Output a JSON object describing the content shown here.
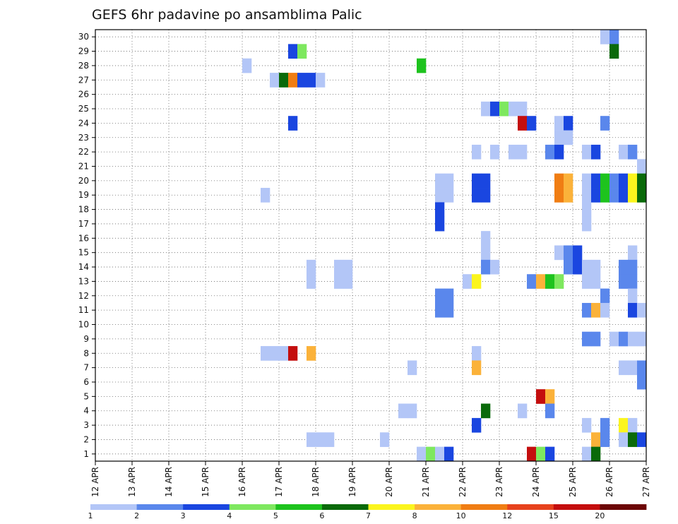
{
  "chart_data": {
    "type": "heatmap",
    "title": "GEFS 6hr padavine po ansamblima Palic",
    "xlabel": "",
    "ylabel": "",
    "x_tick_labels": [
      "12 APR",
      "13 APR",
      "14 APR",
      "15 APR",
      "16 APR",
      "17 APR",
      "18 APR",
      "19 APR",
      "20 APR",
      "21 APR",
      "22 APR",
      "23 APR",
      "24 APR",
      "25 APR",
      "26 APR",
      "27 APR"
    ],
    "xlim": [
      12,
      27
    ],
    "y_tick_labels": [
      1,
      2,
      3,
      4,
      5,
      6,
      7,
      8,
      9,
      10,
      11,
      12,
      13,
      14,
      15,
      16,
      17,
      18,
      19,
      20,
      21,
      22,
      23,
      24,
      25,
      26,
      27,
      28,
      29,
      30
    ],
    "ylim": [
      0.5,
      30.5
    ],
    "grid": true,
    "colorbar": {
      "boundaries": [
        "1",
        "2",
        "3",
        "4",
        "5",
        "6",
        "7",
        "8",
        "10",
        "12",
        "15",
        "20"
      ],
      "colors": [
        "#b3c6f7",
        "#5a87ec",
        "#1a46e0",
        "#7ee85f",
        "#1ec31e",
        "#0a6a0a",
        "#fbf51e",
        "#fbb23a",
        "#f07d13",
        "#e7421d",
        "#c40e0e",
        "#6c0606"
      ]
    },
    "cells": [
      {
        "m": 30,
        "d": "25.75",
        "v": 1
      },
      {
        "m": 30,
        "d": "26.0",
        "v": 2
      },
      {
        "m": 29,
        "d": "17.25",
        "v": 3
      },
      {
        "m": 29,
        "d": "17.5",
        "v": 4
      },
      {
        "m": 29,
        "d": "26.0",
        "v": 6
      },
      {
        "m": 28,
        "d": "16.0",
        "v": 1
      },
      {
        "m": 28,
        "d": "20.75",
        "v": 5
      },
      {
        "m": 27,
        "d": "16.75",
        "v": 1
      },
      {
        "m": 27,
        "d": "17.0",
        "v": 6
      },
      {
        "m": 27,
        "d": "17.25",
        "v": 10
      },
      {
        "m": 27,
        "d": "17.5",
        "v": 3
      },
      {
        "m": 27,
        "d": "17.75",
        "v": 3
      },
      {
        "m": 27,
        "d": "18.0",
        "v": 1
      },
      {
        "m": 25,
        "d": "22.5",
        "v": 1
      },
      {
        "m": 25,
        "d": "22.75",
        "v": 3
      },
      {
        "m": 25,
        "d": "23.0",
        "v": 4
      },
      {
        "m": 25,
        "d": "23.25",
        "v": 1
      },
      {
        "m": 25,
        "d": "23.5",
        "v": 1
      },
      {
        "m": 24,
        "d": "17.25",
        "v": 3
      },
      {
        "m": 24,
        "d": "23.5",
        "v": 15
      },
      {
        "m": 24,
        "d": "23.75",
        "v": 3
      },
      {
        "m": 24,
        "d": "24.5",
        "v": 1
      },
      {
        "m": 24,
        "d": "24.75",
        "v": 3
      },
      {
        "m": 24,
        "d": "25.75",
        "v": 2
      },
      {
        "m": 23,
        "d": "24.5",
        "v": 1
      },
      {
        "m": 23,
        "d": "24.75",
        "v": 1
      },
      {
        "m": 22,
        "d": "22.25",
        "v": 1
      },
      {
        "m": 22,
        "d": "22.75",
        "v": 1
      },
      {
        "m": 22,
        "d": "23.25",
        "v": 1
      },
      {
        "m": 22,
        "d": "23.5",
        "v": 1
      },
      {
        "m": 22,
        "d": "24.25",
        "v": 2
      },
      {
        "m": 22,
        "d": "24.5",
        "v": 3
      },
      {
        "m": 22,
        "d": "25.25",
        "v": 1
      },
      {
        "m": 22,
        "d": "25.5",
        "v": 3
      },
      {
        "m": 22,
        "d": "26.25",
        "v": 1
      },
      {
        "m": 22,
        "d": "26.5",
        "v": 2
      },
      {
        "m": 21,
        "d": "26.75",
        "v": 1
      },
      {
        "m": 20,
        "d": "21.25",
        "v": 1
      },
      {
        "m": 20,
        "d": "21.5",
        "v": 1
      },
      {
        "m": 20,
        "d": "22.25",
        "v": 3
      },
      {
        "m": 20,
        "d": "22.5",
        "v": 3
      },
      {
        "m": 20,
        "d": "24.5",
        "v": 10
      },
      {
        "m": 20,
        "d": "24.75",
        "v": 8
      },
      {
        "m": 20,
        "d": "25.25",
        "v": 1
      },
      {
        "m": 20,
        "d": "25.5",
        "v": 3
      },
      {
        "m": 20,
        "d": "25.75",
        "v": 5
      },
      {
        "m": 20,
        "d": "26.0",
        "v": 2
      },
      {
        "m": 20,
        "d": "26.25",
        "v": 3
      },
      {
        "m": 20,
        "d": "26.5",
        "v": 7
      },
      {
        "m": 20,
        "d": "26.75",
        "v": 6
      },
      {
        "m": 19,
        "d": "16.5",
        "v": 1
      },
      {
        "m": 19,
        "d": "21.25",
        "v": 1
      },
      {
        "m": 19,
        "d": "21.5",
        "v": 1
      },
      {
        "m": 19,
        "d": "22.25",
        "v": 3
      },
      {
        "m": 19,
        "d": "22.5",
        "v": 3
      },
      {
        "m": 19,
        "d": "24.5",
        "v": 10
      },
      {
        "m": 19,
        "d": "24.75",
        "v": 8
      },
      {
        "m": 19,
        "d": "25.25",
        "v": 1
      },
      {
        "m": 19,
        "d": "25.5",
        "v": 3
      },
      {
        "m": 19,
        "d": "25.75",
        "v": 5
      },
      {
        "m": 19,
        "d": "26.0",
        "v": 2
      },
      {
        "m": 19,
        "d": "26.25",
        "v": 3
      },
      {
        "m": 19,
        "d": "26.5",
        "v": 7
      },
      {
        "m": 19,
        "d": "26.75",
        "v": 6
      },
      {
        "m": 18,
        "d": "21.25",
        "v": 3
      },
      {
        "m": 18,
        "d": "25.25",
        "v": 1
      },
      {
        "m": 17,
        "d": "21.25",
        "v": 3
      },
      {
        "m": 17,
        "d": "25.25",
        "v": 1
      },
      {
        "m": 16,
        "d": "22.5",
        "v": 1
      },
      {
        "m": 15,
        "d": "22.5",
        "v": 1
      },
      {
        "m": 15,
        "d": "24.5",
        "v": 1
      },
      {
        "m": 15,
        "d": "24.75",
        "v": 2
      },
      {
        "m": 15,
        "d": "25.0",
        "v": 3
      },
      {
        "m": 15,
        "d": "26.5",
        "v": 1
      },
      {
        "m": 14,
        "d": "17.75",
        "v": 1
      },
      {
        "m": 14,
        "d": "18.5",
        "v": 1
      },
      {
        "m": 14,
        "d": "18.75",
        "v": 1
      },
      {
        "m": 14,
        "d": "22.5",
        "v": 2
      },
      {
        "m": 14,
        "d": "22.75",
        "v": 1
      },
      {
        "m": 14,
        "d": "24.75",
        "v": 2
      },
      {
        "m": 14,
        "d": "25.0",
        "v": 3
      },
      {
        "m": 14,
        "d": "25.25",
        "v": 1
      },
      {
        "m": 14,
        "d": "25.5",
        "v": 1
      },
      {
        "m": 14,
        "d": "26.25",
        "v": 2
      },
      {
        "m": 14,
        "d": "26.5",
        "v": 2
      },
      {
        "m": 13,
        "d": "17.75",
        "v": 1
      },
      {
        "m": 13,
        "d": "18.5",
        "v": 1
      },
      {
        "m": 13,
        "d": "18.75",
        "v": 1
      },
      {
        "m": 13,
        "d": "22.0",
        "v": 1
      },
      {
        "m": 13,
        "d": "22.25",
        "v": 7
      },
      {
        "m": 13,
        "d": "23.75",
        "v": 2
      },
      {
        "m": 13,
        "d": "24.0",
        "v": 8
      },
      {
        "m": 13,
        "d": "24.25",
        "v": 5
      },
      {
        "m": 13,
        "d": "24.5",
        "v": 4
      },
      {
        "m": 13,
        "d": "25.25",
        "v": 1
      },
      {
        "m": 13,
        "d": "25.5",
        "v": 1
      },
      {
        "m": 13,
        "d": "26.25",
        "v": 2
      },
      {
        "m": 13,
        "d": "26.5",
        "v": 2
      },
      {
        "m": 12,
        "d": "21.25",
        "v": 2
      },
      {
        "m": 12,
        "d": "21.5",
        "v": 2
      },
      {
        "m": 12,
        "d": "25.75",
        "v": 2
      },
      {
        "m": 12,
        "d": "26.5",
        "v": 1
      },
      {
        "m": 11,
        "d": "21.25",
        "v": 2
      },
      {
        "m": 11,
        "d": "21.5",
        "v": 2
      },
      {
        "m": 11,
        "d": "25.25",
        "v": 2
      },
      {
        "m": 11,
        "d": "25.5",
        "v": 8
      },
      {
        "m": 11,
        "d": "25.75",
        "v": 1
      },
      {
        "m": 11,
        "d": "26.5",
        "v": 3
      },
      {
        "m": 11,
        "d": "26.75",
        "v": 1
      },
      {
        "m": 9,
        "d": "25.25",
        "v": 2
      },
      {
        "m": 9,
        "d": "25.5",
        "v": 2
      },
      {
        "m": 9,
        "d": "26.0",
        "v": 1
      },
      {
        "m": 9,
        "d": "26.25",
        "v": 2
      },
      {
        "m": 9,
        "d": "26.5",
        "v": 1
      },
      {
        "m": 9,
        "d": "26.75",
        "v": 1
      },
      {
        "m": 8,
        "d": "16.5",
        "v": 1
      },
      {
        "m": 8,
        "d": "16.75",
        "v": 1
      },
      {
        "m": 8,
        "d": "17.0",
        "v": 1
      },
      {
        "m": 8,
        "d": "17.25",
        "v": 15
      },
      {
        "m": 8,
        "d": "17.75",
        "v": 8
      },
      {
        "m": 8,
        "d": "22.25",
        "v": 1
      },
      {
        "m": 7,
        "d": "20.5",
        "v": 1
      },
      {
        "m": 7,
        "d": "22.25",
        "v": 8
      },
      {
        "m": 7,
        "d": "26.25",
        "v": 1
      },
      {
        "m": 7,
        "d": "26.5",
        "v": 1
      },
      {
        "m": 7,
        "d": "26.75",
        "v": 2
      },
      {
        "m": 6,
        "d": "26.75",
        "v": 2
      },
      {
        "m": 5,
        "d": "24.0",
        "v": 15
      },
      {
        "m": 5,
        "d": "24.25",
        "v": 8
      },
      {
        "m": 4,
        "d": "20.25",
        "v": 1
      },
      {
        "m": 4,
        "d": "20.5",
        "v": 1
      },
      {
        "m": 4,
        "d": "22.5",
        "v": 6
      },
      {
        "m": 4,
        "d": "23.5",
        "v": 1
      },
      {
        "m": 4,
        "d": "24.25",
        "v": 2
      },
      {
        "m": 3,
        "d": "22.25",
        "v": 3
      },
      {
        "m": 3,
        "d": "25.25",
        "v": 1
      },
      {
        "m": 3,
        "d": "25.75",
        "v": 2
      },
      {
        "m": 3,
        "d": "26.25",
        "v": 7
      },
      {
        "m": 3,
        "d": "26.5",
        "v": 1
      },
      {
        "m": 2,
        "d": "17.75",
        "v": 1
      },
      {
        "m": 2,
        "d": "18.0",
        "v": 1
      },
      {
        "m": 2,
        "d": "18.25",
        "v": 1
      },
      {
        "m": 2,
        "d": "19.75",
        "v": 1
      },
      {
        "m": 2,
        "d": "25.5",
        "v": 8
      },
      {
        "m": 2,
        "d": "25.75",
        "v": 2
      },
      {
        "m": 2,
        "d": "26.25",
        "v": 1
      },
      {
        "m": 2,
        "d": "26.5",
        "v": 6
      },
      {
        "m": 2,
        "d": "26.75",
        "v": 3
      },
      {
        "m": 1,
        "d": "20.75",
        "v": 1
      },
      {
        "m": 1,
        "d": "21.0",
        "v": 4
      },
      {
        "m": 1,
        "d": "21.25",
        "v": 1
      },
      {
        "m": 1,
        "d": "21.5",
        "v": 3
      },
      {
        "m": 1,
        "d": "23.75",
        "v": 15
      },
      {
        "m": 1,
        "d": "24.0",
        "v": 4
      },
      {
        "m": 1,
        "d": "24.25",
        "v": 3
      },
      {
        "m": 1,
        "d": "25.25",
        "v": 1
      },
      {
        "m": 1,
        "d": "25.5",
        "v": 6
      }
    ]
  }
}
